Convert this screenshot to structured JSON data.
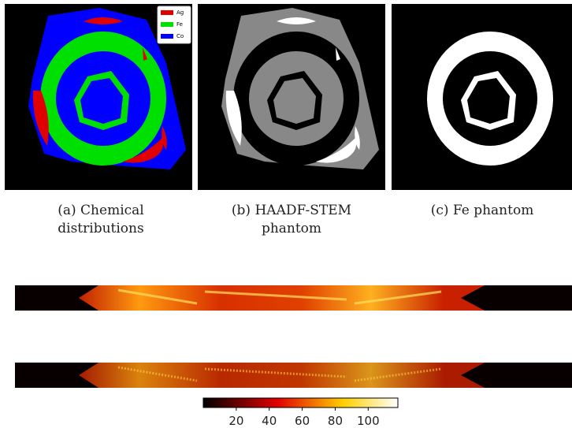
{
  "panels": [
    {
      "legend": [
        "Ag",
        "Fe",
        "Co"
      ],
      "caption": "(a) Chemical distributions"
    },
    {
      "caption": "(b) HAADF-STEM phantom"
    },
    {
      "caption": "(c) Fe phantom"
    }
  ],
  "colorbar": {
    "lim": [
      0,
      118
    ],
    "ticks": [
      20,
      40,
      60,
      80,
      100
    ]
  }
}
